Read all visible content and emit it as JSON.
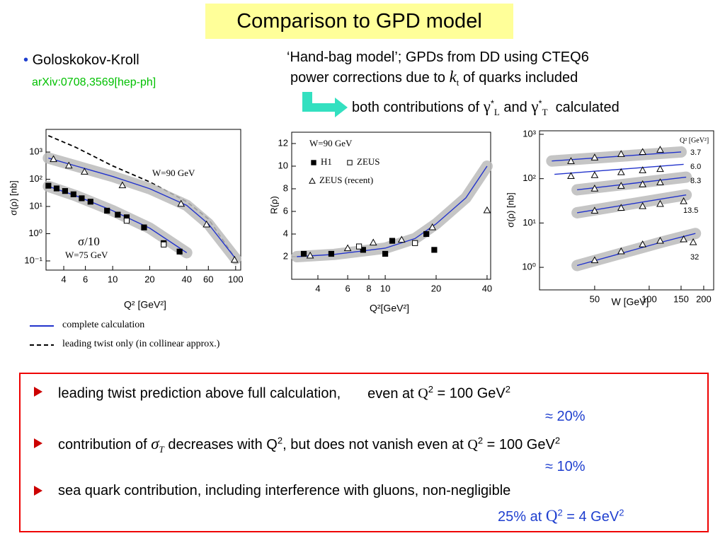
{
  "title": "Comparison to GPD model",
  "author": {
    "bullet": "•",
    "name": "Goloskokov-Kroll",
    "ref": "arXiv:0708,3569[hep-ph]"
  },
  "notes": {
    "line1": "‘Hand-bag model’; GPDs from DD using CTEQ6",
    "line2": [
      "power corrections due to ",
      "k",
      "t",
      " of quarks included"
    ],
    "line3": [
      "both contributions of ",
      "γ",
      "*",
      "L",
      " and ",
      "γ",
      "*",
      "T",
      "  calculated"
    ]
  },
  "plots": [
    {
      "type": "scatter",
      "xlabel": "Q² [GeV²]",
      "ylabel": "σ(ρ) [nb]",
      "xlog": true,
      "ylog": true,
      "xlim": [
        2.87,
        110
      ],
      "ylim": [
        0.046,
        6800
      ],
      "xticks": [
        4,
        6,
        10,
        20,
        40,
        60,
        100
      ],
      "yticks": [
        {
          "value": 0.1,
          "label": "10⁻¹"
        },
        {
          "value": 1,
          "label": "10⁰"
        },
        {
          "value": 10,
          "label": "10¹"
        },
        {
          "value": 100,
          "label": "10²"
        },
        {
          "value": 1000,
          "label": "10³"
        }
      ],
      "annotations": [
        "W=90 GeV",
        "σ/10",
        "W=75 GeV"
      ],
      "series": [
        {
          "kind": "line",
          "style": "dashed",
          "x": [
            3,
            5,
            10,
            20,
            40,
            60,
            100
          ],
          "values": [
            4000,
            1500,
            310,
            80,
            15,
            3.5,
            0.12
          ]
        },
        {
          "kind": "line",
          "style": "solid",
          "band": true,
          "x": [
            3,
            5,
            10,
            20,
            40,
            60,
            100
          ],
          "values": [
            600,
            310,
            127,
            45,
            11,
            2.3,
            0.12
          ]
        },
        {
          "kind": "line",
          "style": "solid",
          "band": true,
          "x": [
            3,
            5,
            10,
            20,
            40
          ],
          "values": [
            55,
            25,
            7,
            1.6,
            0.2
          ]
        },
        {
          "kind": "points",
          "marker": "triangle",
          "x": [
            3.3,
            4.4,
            5.9,
            12,
            36,
            58,
            98
          ],
          "values": [
            550,
            320,
            190,
            60,
            12.6,
            2.2,
            0.11
          ]
        },
        {
          "kind": "points",
          "marker": "filled-square",
          "x": [
            3,
            3.5,
            4.1,
            4.8,
            5.6,
            6.6,
            9,
            11,
            13,
            18,
            26,
            35
          ],
          "values": [
            58,
            46,
            37,
            28,
            20,
            15,
            7,
            5,
            4,
            1.7,
            0.45,
            0.22
          ]
        },
        {
          "kind": "points",
          "marker": "square",
          "x": [
            13,
            26
          ],
          "values": [
            3,
            0.4
          ]
        }
      ]
    },
    {
      "type": "scatter",
      "xlabel": "Q²[GeV²]",
      "ylabel": "R(ρ)",
      "xlog": true,
      "ylog": false,
      "xlim": [
        2.8,
        42
      ],
      "ylim": [
        0,
        13
      ],
      "xticks": [
        4,
        6,
        8,
        10,
        20,
        40
      ],
      "yticks": [
        2,
        4,
        6,
        8,
        10,
        12
      ],
      "annotations": [
        "W=90 GeV"
      ],
      "series": [
        {
          "kind": "line",
          "style": "solid",
          "band": true,
          "x": [
            3,
            5,
            10,
            15,
            20,
            30,
            40
          ],
          "values": [
            2,
            2.2,
            2.75,
            3.6,
            4.9,
            7.2,
            10
          ]
        },
        {
          "kind": "points",
          "marker": "filled-square",
          "label": "H1",
          "x": [
            3.3,
            4.8,
            7.4,
            10,
            11,
            17.5,
            19.5
          ],
          "values": [
            2.25,
            2.25,
            2.6,
            2.25,
            3.4,
            4,
            2.6
          ]
        },
        {
          "kind": "points",
          "marker": "square",
          "label": "ZEUS",
          "x": [
            7,
            15
          ],
          "values": [
            2.9,
            3.2
          ]
        },
        {
          "kind": "points",
          "marker": "triangle",
          "label": "ZEUS (recent)",
          "x": [
            3.6,
            6,
            8.5,
            12.5,
            19,
            40
          ],
          "values": [
            2.1,
            2.75,
            3.25,
            3.5,
            4.6,
            6.1
          ]
        }
      ]
    },
    {
      "type": "scatter",
      "xlabel": "W [GeV]",
      "ylabel": "σ(ρ) [nb]",
      "xlog": true,
      "ylog": true,
      "xlim": [
        24.8,
        227
      ],
      "ylim": [
        0.31,
        1200
      ],
      "xticks": [
        50,
        100,
        150,
        200
      ],
      "yticks": [
        {
          "value": 1,
          "label": "10⁰"
        },
        {
          "value": 10,
          "label": "10¹"
        },
        {
          "value": 100,
          "label": "10²"
        },
        {
          "value": 1000,
          "label": "10³"
        }
      ],
      "annotations": [
        "Q² [GeV²]"
      ],
      "series": [
        {
          "kind": "line",
          "style": "solid",
          "band": true,
          "x": [
            29,
            150
          ],
          "values": [
            250,
            400
          ]
        },
        {
          "kind": "points",
          "marker": "triangle",
          "label": "3.7",
          "x": [
            37,
            50,
            70,
            92,
            115
          ],
          "values": [
            250,
            300,
            360,
            400,
            450
          ]
        },
        {
          "kind": "line",
          "style": "solid",
          "x": [
            30,
            155
          ],
          "values": [
            125,
            210
          ]
        },
        {
          "kind": "points",
          "marker": "triangle",
          "label": "6.0",
          "x": [
            37,
            50,
            70,
            92,
            115
          ],
          "values": [
            115,
            120,
            140,
            155,
            165
          ]
        },
        {
          "kind": "line",
          "style": "solid",
          "band": true,
          "x": [
            40,
            160
          ],
          "values": [
            56,
            108
          ]
        },
        {
          "kind": "points",
          "marker": "triangle",
          "label": "8.3",
          "x": [
            50,
            70,
            92,
            115
          ],
          "values": [
            60,
            69,
            75,
            83
          ]
        },
        {
          "kind": "line",
          "style": "solid",
          "band": true,
          "x": [
            40,
            160
          ],
          "values": [
            17,
            43
          ]
        },
        {
          "kind": "points",
          "marker": "triangle",
          "label": "13.5",
          "x": [
            50,
            70,
            92,
            115,
            155
          ],
          "values": [
            19,
            22,
            24,
            27,
            31
          ]
        },
        {
          "kind": "line",
          "style": "solid",
          "band": true,
          "x": [
            40,
            80,
            120,
            180
          ],
          "values": [
            1.1,
            2.4,
            3.8,
            5.8
          ]
        },
        {
          "kind": "points",
          "marker": "triangle",
          "label": "32",
          "x": [
            50,
            70,
            92,
            115,
            155,
            175
          ],
          "values": [
            1.45,
            2.3,
            3.3,
            4,
            4.3,
            3.7
          ]
        }
      ]
    }
  ],
  "legend": [
    "complete calculation",
    "leading twist only (in collinear approx.)"
  ],
  "box": [
    [
      "leading twist prediction above full calculation,",
      "even at ",
      "Q",
      "2",
      " = 100 GeV",
      "2"
    ],
    [
      "≈ 20%"
    ],
    [
      "contribution of ",
      "σ",
      "T",
      " decreases with Q",
      "2",
      ", but does not vanish even at ",
      "Q",
      "2",
      " = 100 GeV",
      "2"
    ],
    [
      "≈ 10%"
    ],
    [
      "sea quark contribution, including interference with gluons, non-negligible"
    ],
    [
      "25% at ",
      "Q",
      "2",
      " = 4 GeV",
      "2"
    ]
  ]
}
